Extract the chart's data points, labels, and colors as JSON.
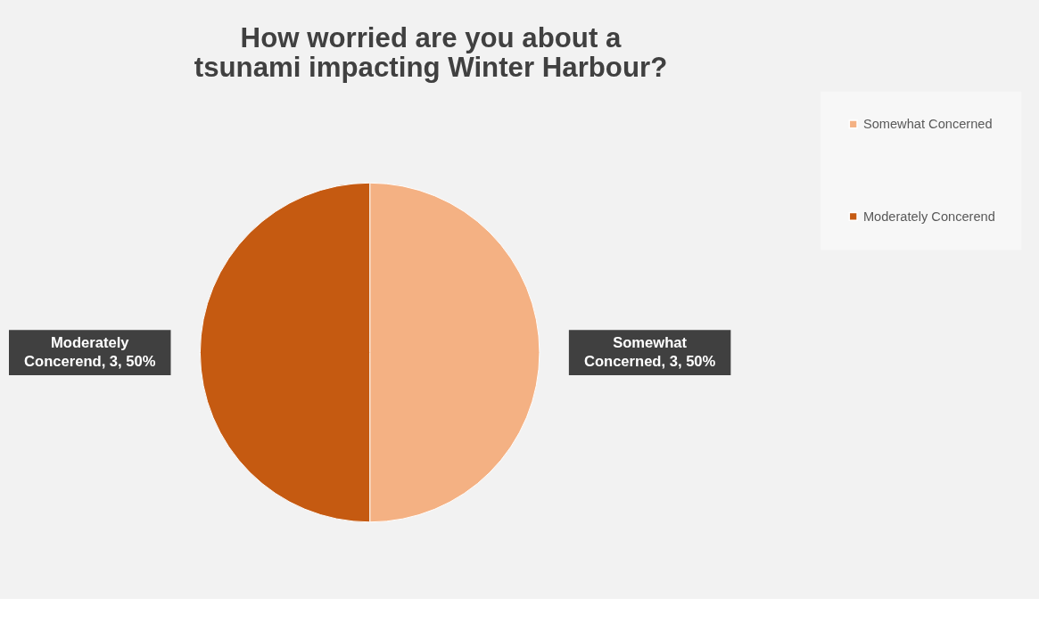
{
  "chart_data": {
    "type": "pie",
    "title": "How worried are you about a tsunami impacting Winter Harbour?",
    "categories": [
      "Somewhat Concerned",
      "Moderately Concerend"
    ],
    "values": [
      3,
      3
    ],
    "colors": [
      "#f4b183",
      "#c55a11"
    ],
    "value_labels": [
      "Somewhat Concerned, 3, 50%",
      "Moderately Concerend, 3, 50%"
    ],
    "legend": "right"
  }
}
